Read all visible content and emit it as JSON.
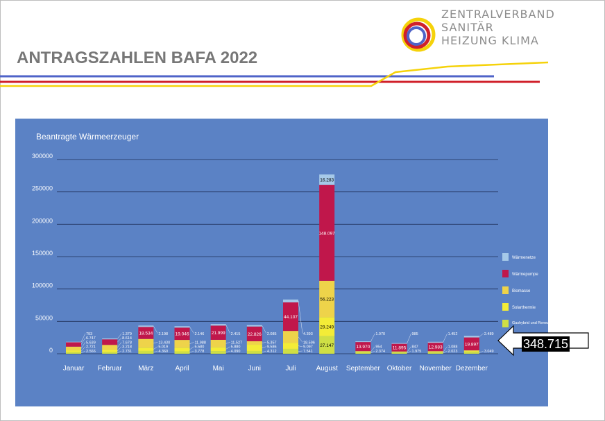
{
  "header": {
    "title": "ANTRAGSZAHLEN BAFA 2022",
    "logo_line1": "ZENTRALVERBAND",
    "logo_line2": "SANITÄR",
    "logo_line3": "HEIZUNG KLIMA"
  },
  "colors": {
    "panel": "#5b82c5",
    "waermenetze": "#a6c9e8",
    "waermepumpe": "#c0174b",
    "biomasse": "#eed34a",
    "solarthermie": "#f3ec37",
    "gashybrid": "#cfdf45",
    "accent_blue": "#4f63c8",
    "accent_red": "#d0202a",
    "accent_yellow": "#f5d20a"
  },
  "callout": {
    "value": "348.715",
    "icon": "arrow-left-icon"
  },
  "chart_data": {
    "type": "bar",
    "stacked": true,
    "title": "Beantragte Wärmeerzeuger",
    "xlabel": "",
    "ylabel": "",
    "ylim": [
      0,
      300000
    ],
    "yticks": [
      0,
      50000,
      100000,
      150000,
      200000,
      250000,
      300000
    ],
    "ytick_labels": [
      "0",
      "50000",
      "100000",
      "150000",
      "200000",
      "250000",
      "300000"
    ],
    "grid": true,
    "legend_position": "right",
    "categories": [
      "Januar",
      "Februar",
      "März",
      "April",
      "Mai",
      "Juni",
      "Juli",
      "August",
      "September",
      "Oktober",
      "November",
      "Dezember"
    ],
    "series": [
      {
        "name": "Gashybrid und Renewable-Ready",
        "legend_label": "Gashybrid und Renewable-Ready",
        "color_key": "gashybrid",
        "values": [
          2566,
          2731,
          4360,
          3778,
          4090,
          4312,
          7541,
          27147,
          2374,
          1975,
          2023,
          3049
        ],
        "labels": [
          "2.566",
          "2.731",
          "4.360",
          "3.778",
          "4.090",
          "4.312",
          "7.541",
          "27.147",
          "2.374",
          "1.975",
          "2.023",
          "3.049"
        ]
      },
      {
        "name": "Solarthermie",
        "legend_label": "Solarthermie",
        "color_key": "solarthermie",
        "values": [
          2721,
          3218,
          5019,
          5580,
          5880,
          9586,
          9097,
          29249,
          954,
          847,
          1088,
          1200
        ],
        "labels": [
          "2.721",
          "3.218",
          "5.019",
          "5.580",
          "5.880",
          "9.586",
          "9.097",
          "29.249",
          "954",
          "847",
          "1.088",
          ""
        ]
      },
      {
        "name": "Biomasse",
        "legend_label": "Biomasse",
        "color_key": "biomasse",
        "values": [
          5639,
          7678,
          13430,
          11988,
          11527,
          5357,
          18596,
          56223,
          800,
          700,
          900,
          1000
        ],
        "labels": [
          "5.639",
          "7.678",
          "13.430",
          "11.988",
          "11.527",
          "5.357",
          "18.596",
          "56.223",
          "",
          "",
          "",
          ""
        ]
      },
      {
        "name": "Wärmepumpe",
        "legend_label": "Wärmepumpe",
        "color_key": "waermepumpe",
        "values": [
          6747,
          8614,
          18534,
          19046,
          21999,
          22826,
          44107,
          148097,
          13970,
          11895,
          12983,
          19897
        ],
        "labels": [
          "6.747",
          "8.614",
          "18.534",
          "19.046",
          "21.999",
          "22.826",
          "44.107",
          "148.097",
          "13.970",
          "11.895",
          "12.983",
          "19.897"
        ]
      },
      {
        "name": "Wärmenetze",
        "legend_label": "Wärmenetze",
        "color_key": "waermenetze",
        "values": [
          793,
          1379,
          2198,
          2146,
          2415,
          2085,
          4393,
          16283,
          1070,
          985,
          1452,
          2489
        ],
        "labels": [
          "793",
          "1.379",
          "2.198",
          "2.146",
          "2.415",
          "2.085",
          "4.393",
          "16.283",
          "1.070",
          "985",
          "1.452",
          "2.489"
        ]
      }
    ]
  }
}
